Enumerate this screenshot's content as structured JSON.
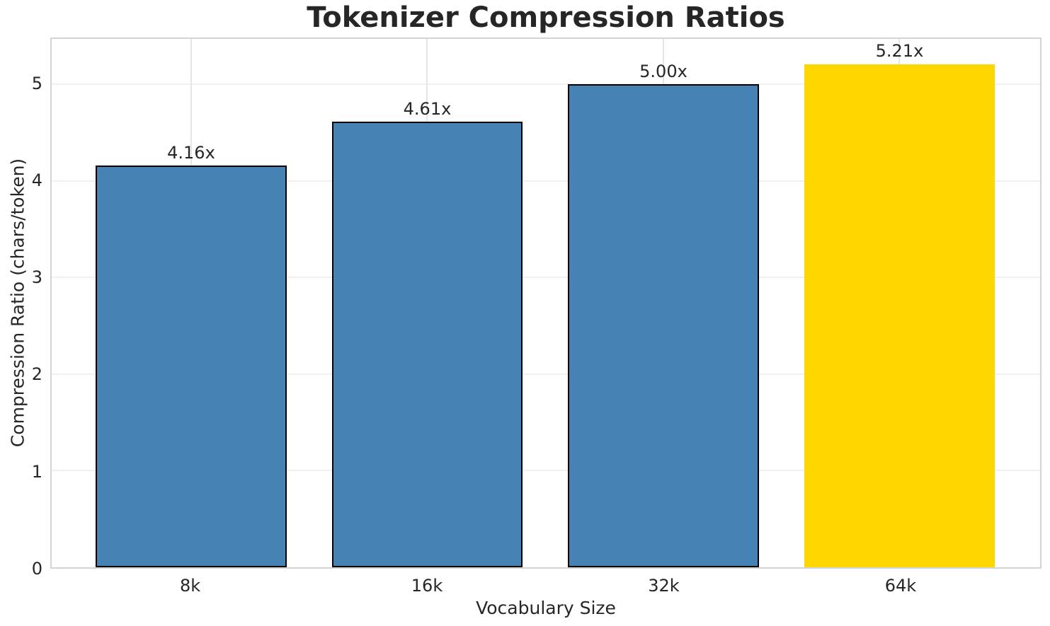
{
  "chart_data": {
    "type": "bar",
    "title": "Tokenizer Compression Ratios",
    "xlabel": "Vocabulary Size",
    "ylabel": "Compression Ratio (chars/token)",
    "categories": [
      "8k",
      "16k",
      "32k",
      "64k"
    ],
    "values": [
      4.16,
      4.61,
      5.0,
      5.21
    ],
    "bar_labels": [
      "4.16x",
      "4.61x",
      "5.00x",
      "5.21x"
    ],
    "yticks": [
      "0",
      "1",
      "2",
      "3",
      "4",
      "5"
    ],
    "ylim": [
      0,
      5.47
    ],
    "grid": true,
    "legend": false,
    "highlight_index": 3,
    "colors": {
      "bar": "#4682b4",
      "highlight": "#ffd700",
      "bar_edge": "#000000",
      "grid_h": "#f0f0f0",
      "grid_v": "#e6e6e6",
      "spine": "#d4d4d4",
      "text": "#262626"
    }
  }
}
